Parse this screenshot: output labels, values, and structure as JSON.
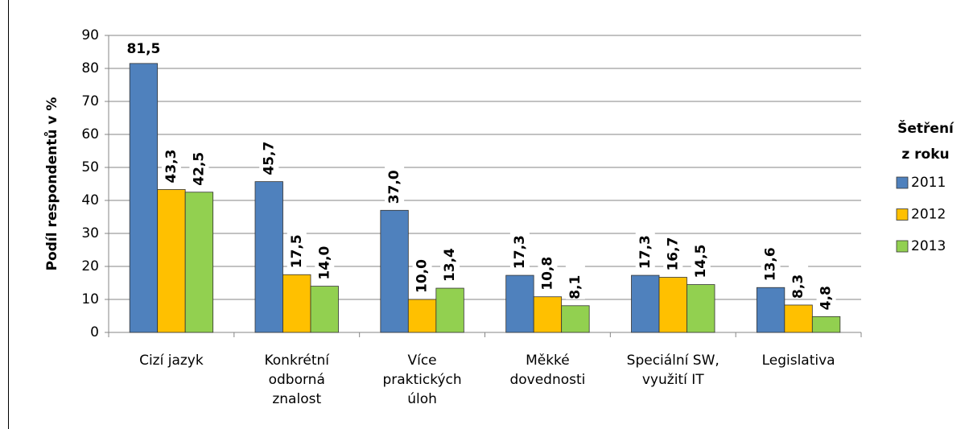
{
  "chart_data": {
    "type": "bar",
    "ylabel": "Podíl respondentů v %",
    "categories": [
      [
        "Cizí jazyk"
      ],
      [
        "Konkrétní",
        "odborná",
        "znalost"
      ],
      [
        "Více",
        "praktických",
        "úloh"
      ],
      [
        "Měkké",
        "dovednosti"
      ],
      [
        "Speciální SW,",
        "využití IT"
      ],
      [
        "Legislativa"
      ]
    ],
    "legend_title": [
      "Šetření",
      "z roku"
    ],
    "legend": "right",
    "series": [
      {
        "name": "2011",
        "color": "#4f81bd",
        "values": [
          81.5,
          45.7,
          37.0,
          17.3,
          17.3,
          13.6
        ],
        "value_labels": [
          "81,5",
          "45,7",
          "37,0",
          "17,3",
          "17,3",
          "13,6"
        ]
      },
      {
        "name": "2012",
        "color": "#ffc000",
        "values": [
          43.3,
          17.5,
          10.0,
          10.8,
          16.7,
          8.3
        ],
        "value_labels": [
          "43,3",
          "17,5",
          "10,0",
          "10,8",
          "16,7",
          "8,3"
        ]
      },
      {
        "name": "2013",
        "color": "#92d050",
        "values": [
          42.5,
          14.0,
          13.4,
          8.1,
          14.5,
          4.8
        ],
        "value_labels": [
          "42,5",
          "14,0",
          "13,4",
          "8,1",
          "14,5",
          "4,8"
        ]
      }
    ],
    "ylim": [
      0,
      90
    ],
    "yticks": [
      0,
      10,
      20,
      30,
      40,
      50,
      60,
      70,
      80,
      90
    ],
    "grid": true
  }
}
